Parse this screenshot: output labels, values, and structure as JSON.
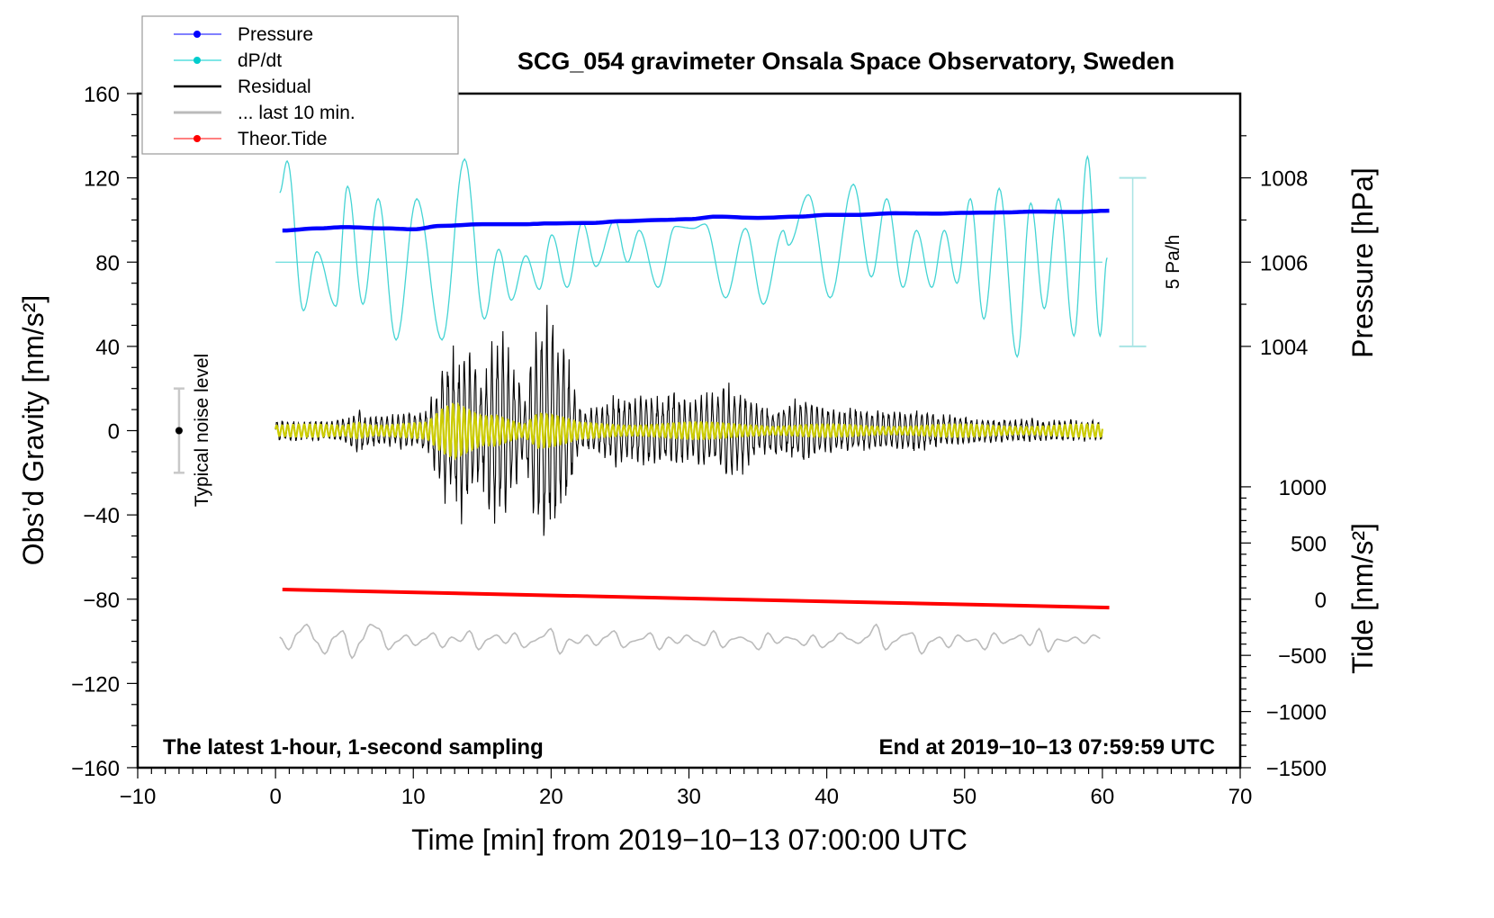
{
  "chart_data": {
    "type": "line",
    "title": "SCG_054 gravimeter Onsala Space Observatory, Sweden",
    "xlabel": "Time [min] from 2019−10−13 07:00:00 UTC",
    "ylabel_left": "Obs’d Gravity [nm/s²]",
    "ylabel_right_top": "Pressure [hPa]",
    "ylabel_right_bottom": "Tide [nm/s²]",
    "xlim": [
      -10,
      70
    ],
    "ylim": [
      -160,
      160
    ],
    "x_ticks": [
      {
        "v": -10,
        "label": "−10"
      },
      {
        "v": 0,
        "label": "0"
      },
      {
        "v": 10,
        "label": "10"
      },
      {
        "v": 20,
        "label": "20"
      },
      {
        "v": 30,
        "label": "30"
      },
      {
        "v": 40,
        "label": "40"
      },
      {
        "v": 50,
        "label": "50"
      },
      {
        "v": 60,
        "label": "60"
      },
      {
        "v": 70,
        "label": "70"
      }
    ],
    "y_ticks": [
      {
        "v": 160,
        "label": "160"
      },
      {
        "v": 120,
        "label": "120"
      },
      {
        "v": 80,
        "label": "80"
      },
      {
        "v": 40,
        "label": "40"
      },
      {
        "v": 0,
        "label": "0"
      },
      {
        "v": -40,
        "label": "−40"
      },
      {
        "v": -80,
        "label": "−80"
      },
      {
        "v": -120,
        "label": "−120"
      },
      {
        "v": -160,
        "label": "−160"
      }
    ],
    "pressure_ticks": [
      {
        "v": 1008,
        "label": "1008"
      },
      {
        "v": 1006,
        "label": "1006"
      },
      {
        "v": 1004,
        "label": "1004"
      }
    ],
    "tide_ticks": [
      {
        "v": 1000,
        "label": "1000"
      },
      {
        "v": 500,
        "label": "500"
      },
      {
        "v": 0,
        "label": "0"
      },
      {
        "v": -500,
        "label": "−500"
      },
      {
        "v": -1000,
        "label": "−1000"
      },
      {
        "v": -1500,
        "label": "−1500"
      }
    ],
    "notes": {
      "left": "The latest 1-hour, 1-second sampling",
      "right": "End at 2019−10−13 07:59:59 UTC",
      "noise": "Typical noise level",
      "dpdt_scale": "5 Pa/h"
    },
    "noise_level": {
      "center": 0,
      "halfwidth": 20,
      "x": -7
    },
    "dpdt_scale_pa_per_h": 5,
    "legend": {
      "position": "top-left",
      "entries": [
        {
          "label": "Pressure",
          "color": "#0000ff",
          "marker": true
        },
        {
          "label": "dP/dt",
          "color": "#00cccc",
          "marker": true
        },
        {
          "label": "Residual",
          "color": "#000000",
          "marker": false
        },
        {
          "label": "... last 10 min.",
          "color": "#bbbbbb",
          "marker": false
        },
        {
          "label": "Theor.Tide",
          "color": "#ff0000",
          "marker": true
        }
      ]
    },
    "colors": {
      "pressure": "#0000ff",
      "dpdt": "#44d4d4",
      "residual": "#000000",
      "filtered": "#cccc00",
      "last10": "#bbbbbb",
      "tide": "#ff0000"
    },
    "series": {
      "pressure_hpa": {
        "t": [
          0.5,
          3,
          5,
          8,
          10,
          12,
          15,
          18,
          20,
          23,
          25,
          28,
          30,
          32,
          35,
          38,
          40,
          42,
          45,
          48,
          50,
          53,
          55,
          58,
          60.5
        ],
        "v": [
          1006.75,
          1006.8,
          1006.83,
          1006.8,
          1006.78,
          1006.86,
          1006.9,
          1006.9,
          1006.92,
          1006.93,
          1006.97,
          1007.0,
          1007.02,
          1007.08,
          1007.05,
          1007.08,
          1007.12,
          1007.12,
          1007.16,
          1007.15,
          1007.17,
          1007.18,
          1007.2,
          1007.19,
          1007.22
        ]
      },
      "dpdt_pa_per_h": {
        "t": [
          0.3,
          0.85,
          2.02,
          3.0,
          4.38,
          5.23,
          6.34,
          7.45,
          8.75,
          10.25,
          12.08,
          13.72,
          15.15,
          16.2,
          17.11,
          18.16,
          19.14,
          20.05,
          21.16,
          22.27,
          23.25,
          24.62,
          25.54,
          26.39,
          27.76,
          29.0,
          30.3,
          31.16,
          32.66,
          34.1,
          35.4,
          36.84,
          37.23,
          38.67,
          40.24,
          41.93,
          43.24,
          44.35,
          45.53,
          46.51,
          47.62,
          48.53,
          49.45,
          50.42,
          51.4,
          52.51,
          53.82,
          54.8,
          55.78,
          56.82,
          57.94,
          58.92,
          59.83,
          60.35
        ],
        "v": [
          2.06,
          3.0,
          -1.44,
          0.31,
          -1.31,
          2.25,
          -1.25,
          1.88,
          -2.31,
          1.88,
          -2.31,
          3.06,
          -1.69,
          0.38,
          -1.13,
          0.19,
          -0.81,
          0.81,
          -0.75,
          1.19,
          -0.13,
          1.25,
          0.0,
          0.94,
          -0.75,
          1.06,
          1.0,
          1.13,
          -1.06,
          1.0,
          -1.25,
          0.94,
          0.5,
          2.0,
          -1.06,
          2.31,
          -0.44,
          1.88,
          -0.75,
          0.94,
          -0.75,
          0.94,
          -0.63,
          1.88,
          -1.69,
          2.19,
          -2.81,
          1.75,
          -1.38,
          1.88,
          -2.19,
          3.13,
          -2.19,
          0.13
        ]
      },
      "residual_envelope_per_min": [
        5,
        5,
        5,
        5,
        5,
        6,
        10,
        8,
        8,
        8,
        9,
        10,
        30,
        42,
        40,
        25,
        48,
        42,
        15,
        55,
        60,
        40,
        12,
        10,
        15,
        18,
        15,
        20,
        14,
        20,
        16,
        18,
        20,
        25,
        20,
        12,
        12,
        13,
        18,
        12,
        12,
        10,
        12,
        10,
        10,
        10,
        10,
        10,
        8,
        8,
        7,
        6,
        6,
        6,
        6,
        6,
        5,
        5,
        5,
        5,
        5
      ],
      "filtered_envelope_per_min": [
        3,
        3,
        3,
        3,
        3,
        3,
        6,
        4,
        4,
        4,
        4,
        4,
        10,
        14,
        12,
        10,
        12,
        8,
        4,
        10,
        8,
        6,
        4,
        4,
        4,
        4,
        4,
        4,
        4,
        4,
        4,
        4,
        4,
        4,
        4,
        4,
        3,
        3,
        3,
        3,
        3,
        3,
        3,
        3,
        3,
        3,
        3,
        3,
        3,
        3,
        3,
        3,
        3,
        3,
        3,
        3,
        3,
        3,
        3,
        3,
        3
      ],
      "tide_nm_s2": {
        "t": [
          0.5,
          60.5
        ],
        "v": [
          86,
          -75
        ]
      },
      "last10_nm_s2": [
        -98,
        -104,
        -96,
        -92,
        -100,
        -106,
        -98,
        -95,
        -108,
        -100,
        -92,
        -94,
        -104,
        -100,
        -97,
        -102,
        -99,
        -96,
        -103,
        -98,
        -100,
        -95,
        -104,
        -99,
        -97,
        -101,
        -96,
        -103,
        -100,
        -98,
        -94,
        -106,
        -99,
        -101,
        -97,
        -102,
        -98,
        -95,
        -103,
        -100,
        -99,
        -96,
        -104,
        -98,
        -101,
        -97,
        -100,
        -102,
        -95,
        -103,
        -99,
        -98,
        -100,
        -104,
        -96,
        -101,
        -98,
        -99,
        -102,
        -97,
        -103,
        -100,
        -96,
        -99,
        -101,
        -98,
        -92,
        -104,
        -100,
        -97,
        -96,
        -106,
        -100,
        -98,
        -103,
        -97,
        -100,
        -99,
        -104,
        -96,
        -101,
        -99,
        -97,
        -102,
        -94,
        -105,
        -99,
        -100,
        -98,
        -101,
        -97,
        -99
      ]
    }
  }
}
